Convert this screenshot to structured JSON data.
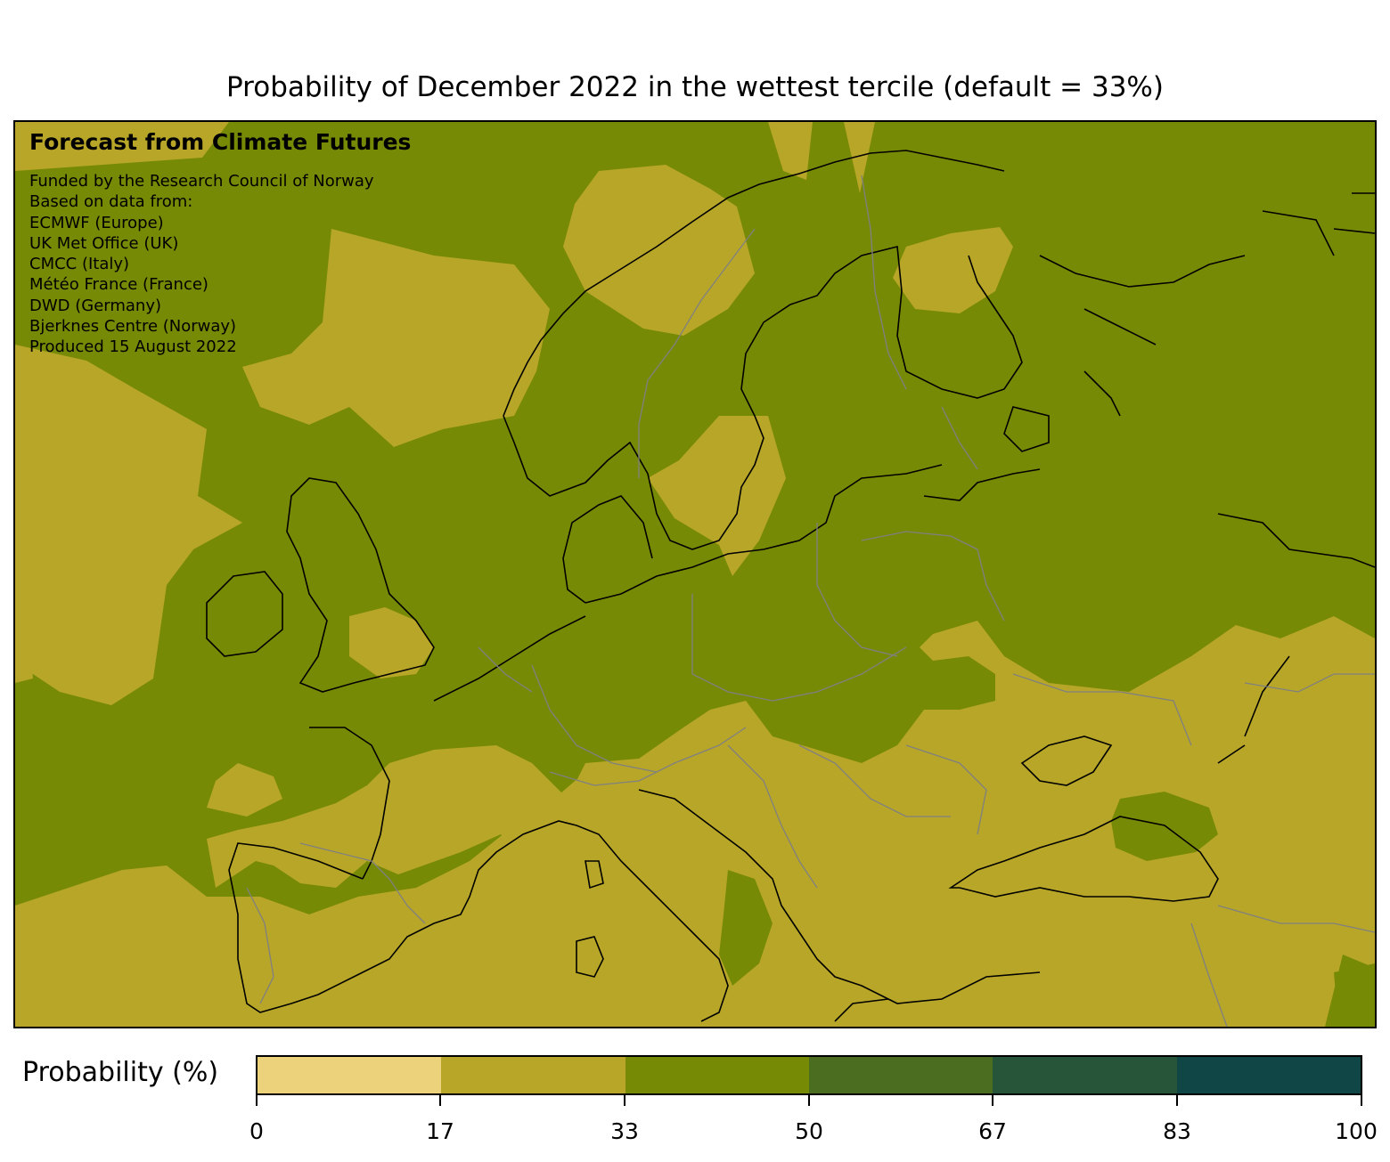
{
  "title": "Probability of December 2022 in the wettest tercile (default = 33%)",
  "overlay": {
    "heading": "Forecast from Climate Futures",
    "lines": [
      "Funded by the Research Council of Norway",
      "Based on data from:",
      "ECMWF (Europe)",
      "UK Met Office (UK)",
      "CMCC (Italy)",
      "Météo France (France)",
      "DWD (Germany)",
      "Bjerknes Centre (Norway)",
      "Produced 15 August 2022"
    ]
  },
  "colorbar": {
    "label": "Probability (%)",
    "ticks": [
      "0",
      "17",
      "33",
      "50",
      "67",
      "83",
      "100"
    ],
    "colors": [
      "#ecd27a",
      "#b8a628",
      "#778a06",
      "#4a6d20",
      "#27553a",
      "#114646"
    ]
  },
  "map": {
    "region": "Europe",
    "classes_present": [
      "17-33",
      "33-50"
    ],
    "palette": {
      "c17_33": "#b8a628",
      "c33_50": "#778a06",
      "coast": "#000000",
      "borders": "#808080"
    }
  }
}
